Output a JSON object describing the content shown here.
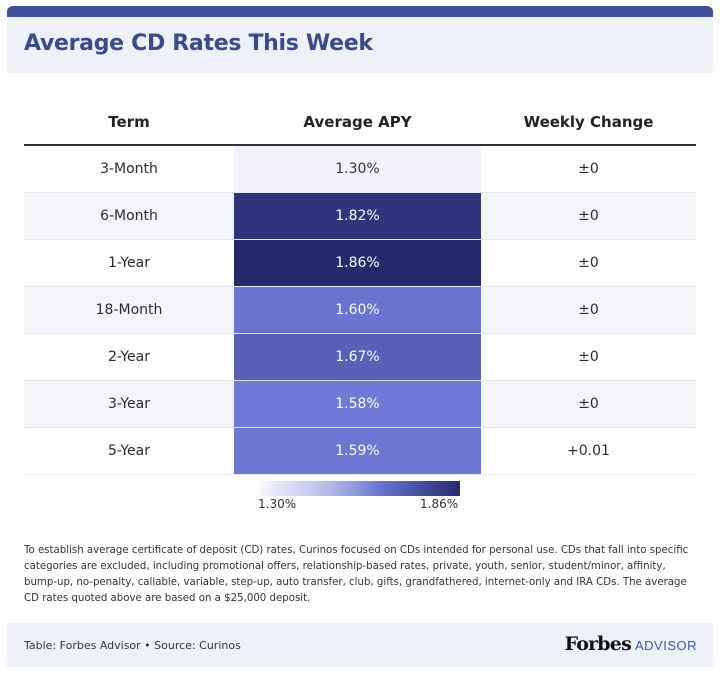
{
  "title": "Average CD Rates This Week",
  "chart_data": {
    "type": "heatmap",
    "title": "Average CD Rates This Week",
    "columns": [
      "Term",
      "Average APY",
      "Weekly Change"
    ],
    "rows": [
      {
        "term": "3-Month",
        "apy": 1.3,
        "apy_label": "1.30%",
        "change": "±0"
      },
      {
        "term": "6-Month",
        "apy": 1.82,
        "apy_label": "1.82%",
        "change": "±0"
      },
      {
        "term": "1-Year",
        "apy": 1.86,
        "apy_label": "1.86%",
        "change": "±0"
      },
      {
        "term": "18-Month",
        "apy": 1.6,
        "apy_label": "1.60%",
        "change": "±0"
      },
      {
        "term": "2-Year",
        "apy": 1.67,
        "apy_label": "1.67%",
        "change": "±0"
      },
      {
        "term": "3-Year",
        "apy": 1.58,
        "apy_label": "1.58%",
        "change": "±0"
      },
      {
        "term": "5-Year",
        "apy": 1.59,
        "apy_label": "1.59%",
        "change": "+0.01"
      }
    ],
    "color_scale": {
      "min": 1.3,
      "max": 1.86,
      "min_label": "1.30%",
      "max_label": "1.86%",
      "colors": [
        "#f3f4fb",
        "#6f7ad8",
        "#232a6c"
      ]
    }
  },
  "note": "To establish average certificate of deposit (CD) rates, Curinos focused on CDs intended for personal use. CDs that fall into specific categories are excluded, including promotional offers, relationship-based rates, private, youth, senior, student/minor, affinity, bump-up, no-penalty, callable, variable, step-up, auto transfer, club, gifts, grandfathered, internet-only and IRA CDs. The average CD rates quoted above are based on a $25,000 deposit.",
  "footer": {
    "source": "Table: Forbes Advisor • Source: Curinos",
    "logo_main": "Forbes",
    "logo_sub": "ADVISOR"
  }
}
